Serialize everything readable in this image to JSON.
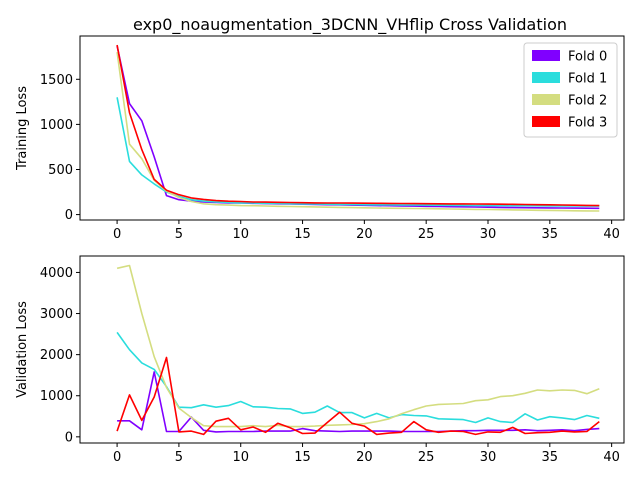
{
  "chart_data": [
    {
      "type": "line",
      "title": "exp0_noaugmentation_3DCNN_VHflip Cross Validation",
      "xlabel": "",
      "ylabel": "Training Loss",
      "xlim": [
        -3,
        41
      ],
      "ylim": [
        -60,
        1980
      ],
      "xticks": [
        0,
        5,
        10,
        15,
        20,
        25,
        30,
        35,
        40
      ],
      "yticks": [
        0,
        500,
        1000,
        1500
      ],
      "legend": "top-right",
      "grid": false,
      "x": [
        0,
        1,
        2,
        3,
        4,
        5,
        6,
        7,
        8,
        9,
        10,
        11,
        12,
        13,
        14,
        15,
        16,
        17,
        18,
        19,
        20,
        21,
        22,
        23,
        24,
        25,
        26,
        27,
        28,
        29,
        30,
        31,
        32,
        33,
        34,
        35,
        36,
        37,
        38,
        39
      ],
      "series": [
        {
          "name": "Fold 0",
          "color": "#8000ff",
          "values": [
            1870,
            1230,
            1040,
            640,
            210,
            165,
            150,
            140,
            135,
            130,
            128,
            125,
            122,
            120,
            118,
            115,
            112,
            110,
            108,
            105,
            103,
            100,
            98,
            96,
            94,
            92,
            90,
            88,
            86,
            84,
            82,
            80,
            78,
            76,
            75,
            74,
            73,
            72,
            71,
            70
          ]
        },
        {
          "name": "Fold 1",
          "color": "#2adddd",
          "values": [
            1300,
            590,
            440,
            340,
            250,
            200,
            165,
            150,
            140,
            135,
            130,
            128,
            125,
            123,
            121,
            119,
            117,
            115,
            113,
            112,
            110,
            109,
            108,
            107,
            106,
            105,
            104,
            103,
            102,
            101,
            100,
            100,
            99,
            98,
            97,
            96,
            96,
            95,
            94,
            94
          ]
        },
        {
          "name": "Fold 2",
          "color": "#d4dd80",
          "values": [
            1800,
            780,
            620,
            380,
            260,
            190,
            145,
            120,
            110,
            105,
            100,
            98,
            95,
            92,
            90,
            88,
            85,
            82,
            80,
            78,
            75,
            73,
            71,
            70,
            68,
            66,
            64,
            62,
            60,
            58,
            56,
            54,
            52,
            50,
            48,
            46,
            44,
            42,
            41,
            40
          ]
        },
        {
          "name": "Fold 3",
          "color": "#ff0000",
          "values": [
            1880,
            1130,
            720,
            390,
            270,
            220,
            185,
            168,
            155,
            148,
            145,
            140,
            138,
            136,
            134,
            132,
            130,
            129,
            128,
            127,
            126,
            125,
            124,
            123,
            122,
            121,
            120,
            119,
            118,
            117,
            116,
            115,
            114,
            112,
            110,
            108,
            106,
            104,
            102,
            100
          ]
        }
      ]
    },
    {
      "type": "line",
      "title": "",
      "xlabel": "",
      "ylabel": "Validation Loss",
      "xlim": [
        -3,
        41
      ],
      "ylim": [
        -150,
        4400
      ],
      "xticks": [
        0,
        5,
        10,
        15,
        20,
        25,
        30,
        35,
        40
      ],
      "yticks": [
        0,
        1000,
        2000,
        3000,
        4000
      ],
      "grid": false,
      "x": [
        0,
        1,
        2,
        3,
        4,
        5,
        6,
        7,
        8,
        9,
        10,
        11,
        12,
        13,
        14,
        15,
        16,
        17,
        18,
        19,
        20,
        21,
        22,
        23,
        24,
        25,
        26,
        27,
        28,
        29,
        30,
        31,
        32,
        33,
        34,
        35,
        36,
        37,
        38,
        39
      ],
      "series": [
        {
          "name": "Fold 0",
          "color": "#8000ff",
          "values": [
            390,
            390,
            170,
            1580,
            130,
            130,
            480,
            160,
            120,
            130,
            130,
            130,
            140,
            140,
            140,
            200,
            150,
            140,
            130,
            140,
            140,
            140,
            140,
            130,
            130,
            130,
            130,
            140,
            150,
            150,
            160,
            160,
            160,
            170,
            150,
            160,
            170,
            150,
            180,
            200
          ]
        },
        {
          "name": "Fold 1",
          "color": "#2adddd",
          "values": [
            2540,
            2120,
            1800,
            1640,
            1220,
            720,
            710,
            780,
            720,
            760,
            860,
            730,
            720,
            690,
            680,
            570,
            600,
            750,
            590,
            590,
            460,
            570,
            460,
            540,
            520,
            510,
            440,
            430,
            420,
            350,
            460,
            370,
            350,
            560,
            410,
            490,
            460,
            420,
            520,
            450
          ]
        },
        {
          "name": "Fold 2",
          "color": "#d4dd80",
          "values": [
            4100,
            4170,
            3000,
            1950,
            1200,
            700,
            470,
            270,
            250,
            250,
            250,
            270,
            250,
            280,
            250,
            250,
            260,
            280,
            290,
            300,
            320,
            370,
            440,
            560,
            660,
            750,
            790,
            800,
            810,
            880,
            900,
            980,
            1000,
            1060,
            1140,
            1120,
            1140,
            1130,
            1050,
            1170
          ]
        },
        {
          "name": "Fold 3",
          "color": "#ff0000",
          "values": [
            140,
            1020,
            400,
            970,
            1930,
            120,
            140,
            60,
            380,
            450,
            170,
            240,
            110,
            330,
            220,
            80,
            90,
            350,
            600,
            330,
            260,
            60,
            90,
            110,
            370,
            170,
            110,
            140,
            130,
            60,
            120,
            110,
            230,
            80,
            100,
            110,
            140,
            120,
            130,
            370
          ]
        }
      ]
    }
  ]
}
